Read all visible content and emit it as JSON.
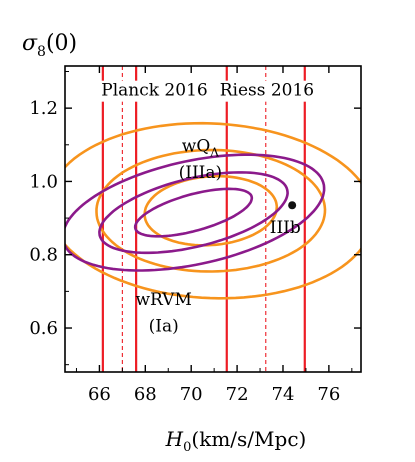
{
  "chart_data": {
    "type": "contour",
    "ylabel_symbol": "σ",
    "ylabel_sub": "8",
    "ylabel_arg": "(0)",
    "xlabel_symbol": "H",
    "xlabel_sub": "0",
    "xlabel_units": "(km/s/Mpc)",
    "xlim": [
      64.5,
      77.4
    ],
    "ylim": [
      0.48,
      1.315
    ],
    "grid": false,
    "xticks": [
      66,
      68,
      70,
      72,
      74,
      76
    ],
    "xtick_labels": [
      "66",
      "68",
      "70",
      "72",
      "74",
      "76"
    ],
    "yticks": [
      0.6,
      0.8,
      1.0,
      1.2
    ],
    "ytick_labels": [
      "0.6",
      "0.8",
      "1.0",
      "1.2"
    ],
    "vertical_lines": [
      {
        "x": 66.15,
        "style": "solid"
      },
      {
        "x": 67.0,
        "style": "dashed"
      },
      {
        "x": 67.6,
        "style": "solid"
      },
      {
        "x": 71.55,
        "style": "solid"
      },
      {
        "x": 73.25,
        "style": "dashed"
      },
      {
        "x": 74.95,
        "style": "solid"
      }
    ],
    "bands": [
      {
        "name": "Planck 2016",
        "label_x": 68.4,
        "label_y": 1.234
      },
      {
        "name": "Riess 2016",
        "label_x": 73.3,
        "label_y": 1.234
      }
    ],
    "series": [
      {
        "name": "wQΛ (IIIa)",
        "color": "#f7941d",
        "center": [
          70.85,
          0.92
        ],
        "contours": [
          {
            "hx": 3.0,
            "hy": 0.09,
            "angle_deg": 40
          },
          {
            "hx": 5.0,
            "hy": 0.165,
            "angle_deg": 40
          },
          {
            "hx": 6.9,
            "hy": 0.245,
            "angle_deg": 40
          }
        ]
      },
      {
        "name": "wRVM (Ia)",
        "color": "#8b1a8b",
        "center": [
          70.1,
          0.915
        ],
        "contours": [
          {
            "hx": 2.9,
            "hy": 0.045,
            "angle_deg": 33
          },
          {
            "hx": 4.6,
            "hy": 0.085,
            "angle_deg": 33
          },
          {
            "hx": 6.3,
            "hy": 0.13,
            "angle_deg": 33
          }
        ]
      }
    ],
    "points": [
      {
        "name": "IIIb",
        "x": 74.4,
        "y": 0.935,
        "color": "#111111"
      }
    ],
    "annotations": [
      {
        "parts": [
          "wQ",
          "Λ"
        ],
        "x": 70.4,
        "y": 1.082
      },
      {
        "parts": [
          "(IIIa)"
        ],
        "x": 70.4,
        "y": 1.01
      },
      {
        "parts": [
          "IIIb"
        ],
        "x": 74.1,
        "y": 0.859
      },
      {
        "parts": [
          "wRVM"
        ],
        "x": 68.8,
        "y": 0.663
      },
      {
        "parts": [
          "(Ia)"
        ],
        "x": 68.8,
        "y": 0.591
      }
    ],
    "colors": {
      "band_line": "#ed1c24",
      "frame": "#000000"
    }
  }
}
